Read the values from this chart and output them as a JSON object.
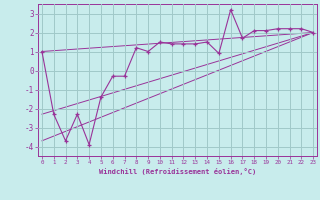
{
  "xlabel": "Windchill (Refroidissement éolien,°C)",
  "background_color": "#c8ecec",
  "grid_color": "#a0c8c8",
  "line_color": "#993399",
  "x_data": [
    0,
    1,
    2,
    3,
    4,
    5,
    6,
    7,
    8,
    9,
    10,
    11,
    12,
    13,
    14,
    15,
    16,
    17,
    18,
    19,
    20,
    21,
    22,
    23
  ],
  "y_main": [
    1.0,
    -2.3,
    -3.7,
    -2.3,
    -3.9,
    -1.4,
    -0.3,
    -0.3,
    1.2,
    1.0,
    1.5,
    1.4,
    1.4,
    1.4,
    1.5,
    0.9,
    3.2,
    1.7,
    2.1,
    2.1,
    2.2,
    2.2,
    2.2,
    2.0
  ],
  "ref_lines": [
    {
      "x0": 0,
      "y0": 1.0,
      "x1": 23,
      "y1": 2.0
    },
    {
      "x0": 0,
      "y0": -2.3,
      "x1": 23,
      "y1": 2.0
    },
    {
      "x0": 0,
      "y0": -3.7,
      "x1": 23,
      "y1": 2.0
    }
  ],
  "xlim": [
    -0.3,
    23.3
  ],
  "ylim": [
    -4.5,
    3.5
  ],
  "yticks": [
    -4,
    -3,
    -2,
    -1,
    0,
    1,
    2,
    3
  ],
  "xticks": [
    0,
    1,
    2,
    3,
    4,
    5,
    6,
    7,
    8,
    9,
    10,
    11,
    12,
    13,
    14,
    15,
    16,
    17,
    18,
    19,
    20,
    21,
    22,
    23
  ]
}
